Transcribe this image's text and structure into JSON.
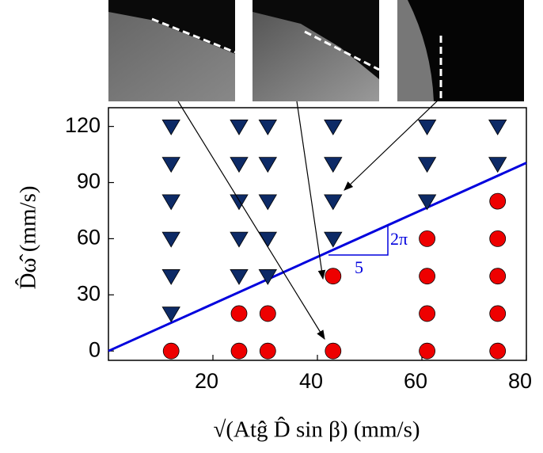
{
  "chart_data": {
    "type": "scatter",
    "x_label": "√(Atĝ D̂ sin β) (mm/s)",
    "y_label": "D̂ω̂ (mm/s)",
    "annotations": [
      "2π",
      "5"
    ],
    "xlim": [
      0,
      80
    ],
    "xticks": [
      20,
      40,
      60,
      80
    ],
    "ylim": [
      -5,
      130
    ],
    "yticks": [
      0,
      30,
      60,
      90,
      120
    ],
    "series": [
      {
        "marker": "triangle",
        "color": "#0d2a66",
        "x": [
          12,
          12,
          12,
          12,
          12,
          12,
          25,
          25,
          25,
          25,
          25,
          30.5,
          30.5,
          30.5,
          30.5,
          30.5,
          43,
          43,
          43,
          43,
          61,
          61,
          61,
          74.5,
          74.5
        ],
        "values": [
          120,
          100,
          80,
          60,
          40,
          20,
          120,
          100,
          80,
          60,
          40,
          120,
          100,
          80,
          60,
          40,
          120,
          100,
          80,
          60,
          120,
          100,
          80,
          120,
          100
        ]
      },
      {
        "marker": "circle",
        "color": "#ee0000",
        "x": [
          12,
          25,
          25,
          30.5,
          30.5,
          43,
          43,
          61,
          61,
          61,
          61,
          74.5,
          74.5,
          74.5,
          74.5,
          74.5
        ],
        "values": [
          0,
          20,
          0,
          20,
          0,
          40,
          0,
          60,
          40,
          20,
          0,
          80,
          60,
          40,
          20,
          0
        ]
      },
      {
        "marker": "line",
        "color": "#0000dd",
        "x": [
          0,
          80
        ],
        "values": [
          0,
          100.53
        ]
      }
    ]
  }
}
